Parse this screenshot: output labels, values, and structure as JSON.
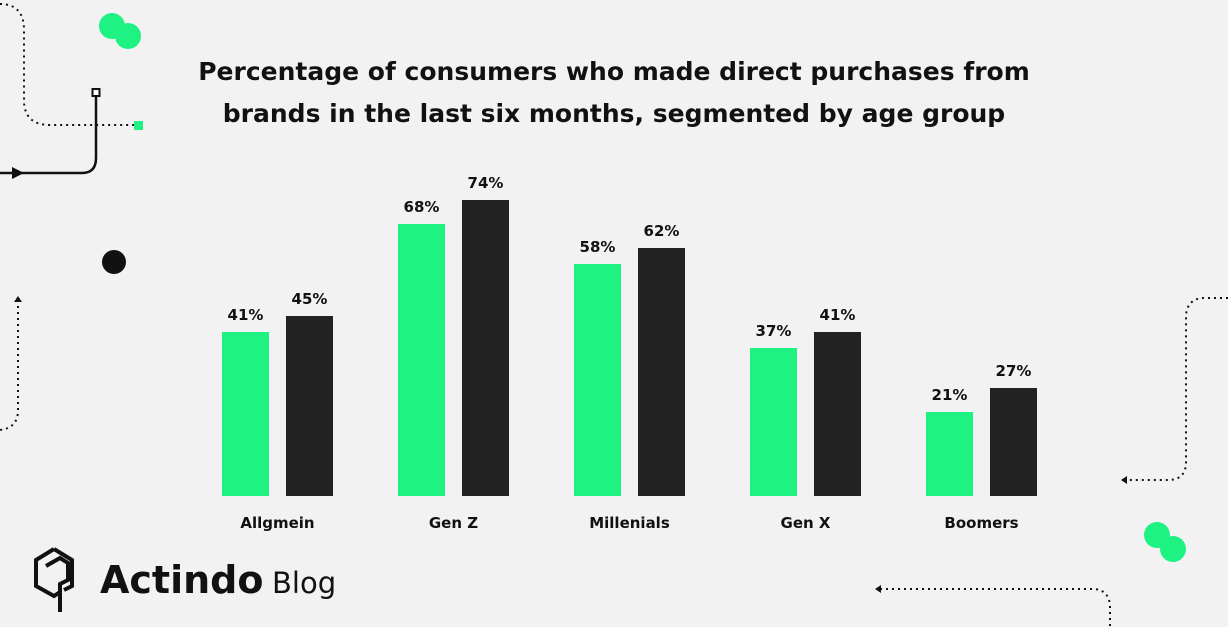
{
  "chart_data": {
    "type": "bar",
    "title_lines": [
      "Percentage of consumers who made direct purchases from",
      "brands in the last six months, segmented by age group"
    ],
    "categories": [
      "Allgmein",
      "Gen Z",
      "Millenials",
      "Gen X",
      "Boomers"
    ],
    "series": [
      {
        "values": [
          41,
          68,
          58,
          37,
          21
        ],
        "color": "#1ef283"
      },
      {
        "values": [
          45,
          74,
          62,
          41,
          27
        ],
        "color": "#222222"
      }
    ],
    "value_suffix": "%",
    "ylim": [
      0,
      80
    ],
    "grid": false,
    "axes_visible": false
  },
  "brand": {
    "name": "Actindo",
    "suffix": "Blog"
  },
  "colors": {
    "accent": "#1ef283",
    "dark": "#111111",
    "background": "#f2f2f2"
  }
}
